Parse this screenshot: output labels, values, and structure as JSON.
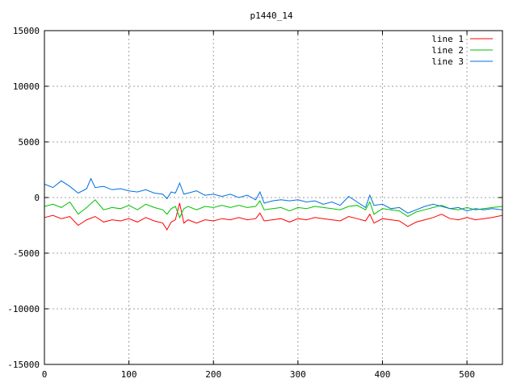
{
  "chart_data": {
    "type": "line",
    "title": "p1440_14",
    "xlabel": "",
    "ylabel": "",
    "xlim": [
      0,
      542
    ],
    "ylim": [
      -15000,
      15000
    ],
    "grid": true,
    "legend_position": "top-right",
    "xticks": [
      0,
      100,
      200,
      300,
      400,
      500
    ],
    "yticks": [
      -15000,
      -10000,
      -5000,
      0,
      5000,
      10000,
      15000
    ],
    "series": [
      {
        "name": "line 1",
        "color": "#ff0000",
        "x": [
          0,
          10,
          20,
          30,
          40,
          50,
          60,
          70,
          80,
          90,
          100,
          110,
          120,
          130,
          140,
          145,
          150,
          155,
          160,
          165,
          170,
          180,
          190,
          200,
          210,
          220,
          230,
          240,
          250,
          255,
          260,
          270,
          280,
          290,
          300,
          310,
          320,
          330,
          340,
          350,
          360,
          370,
          380,
          385,
          390,
          400,
          410,
          420,
          430,
          440,
          450,
          460,
          470,
          480,
          490,
          500,
          510,
          520,
          530,
          542
        ],
        "y": [
          -1800,
          -1600,
          -1900,
          -1700,
          -2500,
          -2000,
          -1700,
          -2200,
          -2000,
          -2100,
          -1900,
          -2200,
          -1800,
          -2100,
          -2300,
          -2900,
          -2200,
          -2000,
          -500,
          -2300,
          -2000,
          -2300,
          -2000,
          -2100,
          -1900,
          -2000,
          -1800,
          -2000,
          -1900,
          -1400,
          -2100,
          -2000,
          -1900,
          -2200,
          -1900,
          -2000,
          -1800,
          -1900,
          -2000,
          -2100,
          -1700,
          -1900,
          -2100,
          -1500,
          -2300,
          -1900,
          -2000,
          -2100,
          -2600,
          -2200,
          -2000,
          -1800,
          -1500,
          -1900,
          -2000,
          -1800,
          -2000,
          -1900,
          -1800,
          -1600
        ]
      },
      {
        "name": "line 2",
        "color": "#00c000",
        "x": [
          0,
          10,
          20,
          30,
          40,
          50,
          60,
          70,
          80,
          90,
          100,
          110,
          120,
          130,
          140,
          145,
          150,
          155,
          160,
          165,
          170,
          180,
          190,
          200,
          210,
          220,
          230,
          240,
          250,
          255,
          260,
          270,
          280,
          290,
          300,
          310,
          320,
          330,
          340,
          350,
          360,
          370,
          380,
          385,
          390,
          400,
          410,
          420,
          430,
          440,
          450,
          460,
          470,
          480,
          490,
          500,
          510,
          520,
          530,
          542
        ],
        "y": [
          -800,
          -600,
          -900,
          -400,
          -1500,
          -900,
          -200,
          -1100,
          -900,
          -1000,
          -700,
          -1100,
          -600,
          -900,
          -1100,
          -1500,
          -1000,
          -800,
          -1800,
          -1000,
          -800,
          -1100,
          -800,
          -900,
          -700,
          -900,
          -700,
          -900,
          -800,
          -300,
          -1100,
          -1000,
          -900,
          -1200,
          -900,
          -1000,
          -800,
          -900,
          -1000,
          -1100,
          -800,
          -700,
          -1100,
          -400,
          -1500,
          -1000,
          -1100,
          -1200,
          -1700,
          -1300,
          -1100,
          -900,
          -700,
          -1000,
          -1100,
          -900,
          -1100,
          -1000,
          -900,
          -800
        ]
      },
      {
        "name": "line 3",
        "color": "#0070e0",
        "x": [
          0,
          10,
          20,
          30,
          40,
          50,
          55,
          60,
          70,
          80,
          90,
          100,
          110,
          120,
          130,
          140,
          145,
          150,
          155,
          160,
          165,
          170,
          180,
          190,
          200,
          210,
          220,
          230,
          240,
          250,
          255,
          260,
          270,
          280,
          290,
          300,
          310,
          320,
          330,
          340,
          350,
          360,
          370,
          380,
          385,
          390,
          400,
          410,
          420,
          430,
          440,
          450,
          460,
          470,
          480,
          490,
          500,
          510,
          520,
          530,
          542
        ],
        "y": [
          1200,
          900,
          1500,
          1000,
          400,
          800,
          1700,
          900,
          1000,
          700,
          800,
          600,
          500,
          700,
          400,
          300,
          -100,
          500,
          400,
          1300,
          300,
          400,
          600,
          200,
          300,
          100,
          300,
          0,
          200,
          -200,
          500,
          -500,
          -300,
          -200,
          -300,
          -200,
          -400,
          -300,
          -600,
          -400,
          -700,
          100,
          -400,
          -900,
          200,
          -700,
          -600,
          -1000,
          -900,
          -1400,
          -1100,
          -800,
          -600,
          -800,
          -1000,
          -900,
          -1200,
          -1000,
          -1100,
          -1000,
          -1100
        ]
      }
    ]
  }
}
